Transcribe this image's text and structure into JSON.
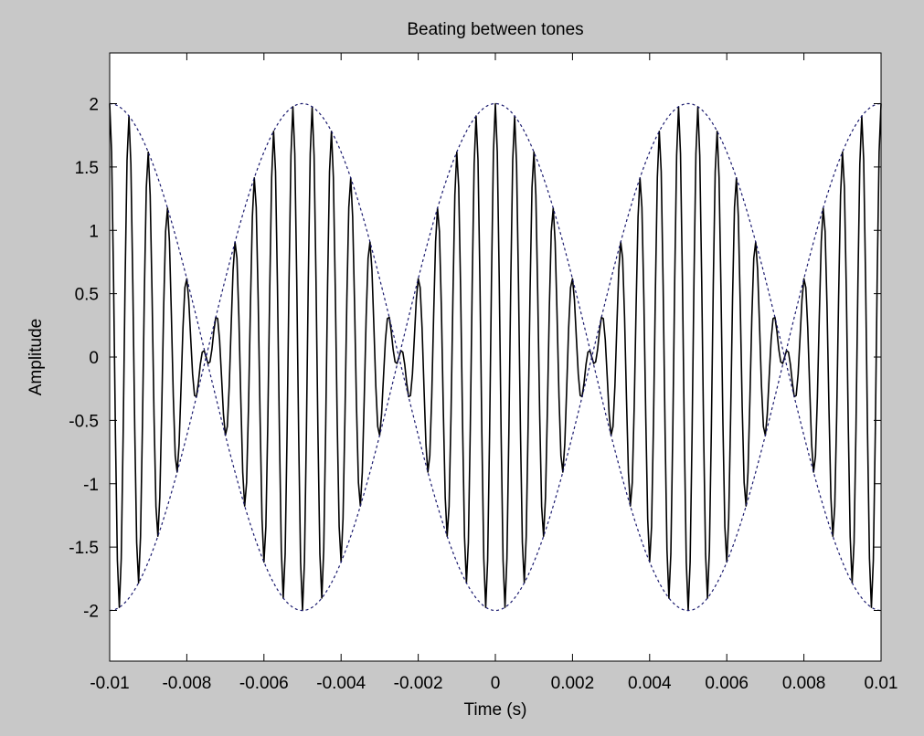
{
  "chart_data": {
    "type": "line",
    "title": "Beating between tones",
    "xlabel": "Time (s)",
    "ylabel": "Amplitude",
    "xlim": [
      -0.01,
      0.01
    ],
    "ylim": [
      -2.4,
      2.4
    ],
    "grid": false,
    "legend": "none",
    "x_ticks": [
      -0.01,
      -0.008,
      -0.006,
      -0.004,
      -0.002,
      0,
      0.002,
      0.004,
      0.006,
      0.008,
      0.01
    ],
    "x_tick_labels": [
      "-0.01",
      "-0.008",
      "-0.006",
      "-0.004",
      "-0.002",
      "0",
      "0.002",
      "0.004",
      "0.006",
      "0.008",
      "0.01"
    ],
    "y_ticks": [
      2,
      1.5,
      1,
      0.5,
      0,
      -0.5,
      -1,
      -1.5,
      -2
    ],
    "y_tick_labels": [
      "2",
      "1.5",
      "1",
      "0.5",
      "0",
      "-0.5",
      "-1",
      "-1.5",
      "-2"
    ],
    "series": [
      {
        "style": "solid",
        "color": "#000000",
        "formula": "2*cos(2*pi*100*t)*cos(2*pi*2000*t)",
        "envelope_frequency_hz": 100,
        "carrier_frequency_hz": 2000,
        "amplitude": 2,
        "sample_rate_hz": 20000
      },
      {
        "style": "dashed",
        "color": "#1a1a6e",
        "formula": "2*cos(2*pi*100*t)",
        "amplitude": 2,
        "frequency_hz": 100
      },
      {
        "style": "dashed",
        "color": "#1a1a6e",
        "formula": "-2*cos(2*pi*100*t)",
        "amplitude": -2,
        "frequency_hz": 100
      }
    ]
  }
}
